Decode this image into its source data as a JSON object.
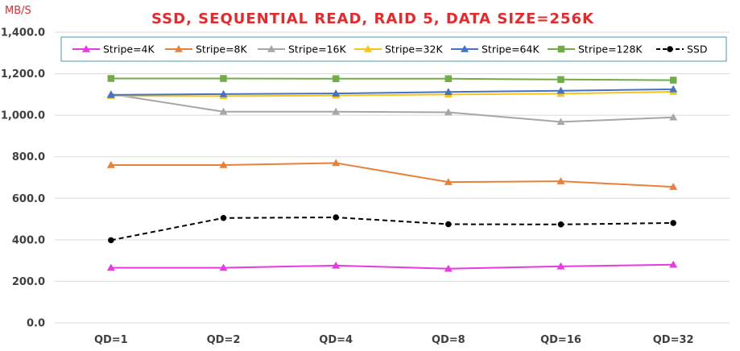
{
  "chart_data": {
    "type": "line",
    "title": "SSD, SEQUENTIAL READ, RAID 5, DATA SIZE=256K",
    "ylabel": "MB/S",
    "xlabel": "",
    "categories": [
      "QD=1",
      "QD=2",
      "QD=4",
      "QD=8",
      "QD=16",
      "QD=32"
    ],
    "ylim": [
      0,
      1400
    ],
    "yticks": [
      "0.0",
      "200.0",
      "400.0",
      "600.0",
      "800.0",
      "1,000.0",
      "1,200.0",
      "1,400.0"
    ],
    "grid": true,
    "legend": "top",
    "series": [
      {
        "name": "Stripe=4K",
        "color": "#e83ae0",
        "marker": "triangle",
        "dash": false,
        "values": [
          265,
          265,
          276,
          261,
          272,
          280
        ]
      },
      {
        "name": "Stripe=8K",
        "color": "#e8803a",
        "marker": "triangle",
        "dash": false,
        "values": [
          760,
          760,
          770,
          678,
          682,
          655
        ]
      },
      {
        "name": "Stripe=16K",
        "color": "#a6a6a6",
        "marker": "triangle",
        "dash": false,
        "values": [
          1102,
          1017,
          1017,
          1014,
          968,
          990
        ]
      },
      {
        "name": "Stripe=32K",
        "color": "#f5c518",
        "marker": "triangle",
        "dash": false,
        "values": [
          1093,
          1092,
          1095,
          1100,
          1104,
          1113
        ]
      },
      {
        "name": "Stripe=64K",
        "color": "#4472c4",
        "marker": "triangle",
        "dash": false,
        "values": [
          1098,
          1102,
          1105,
          1112,
          1118,
          1125
        ]
      },
      {
        "name": "Stripe=128K",
        "color": "#70ad47",
        "marker": "square",
        "dash": false,
        "values": [
          1177,
          1177,
          1176,
          1176,
          1172,
          1169
        ]
      },
      {
        "name": "SSD",
        "color": "#000000",
        "marker": "circle",
        "dash": true,
        "values": [
          398,
          505,
          508,
          475,
          474,
          481
        ]
      }
    ]
  }
}
